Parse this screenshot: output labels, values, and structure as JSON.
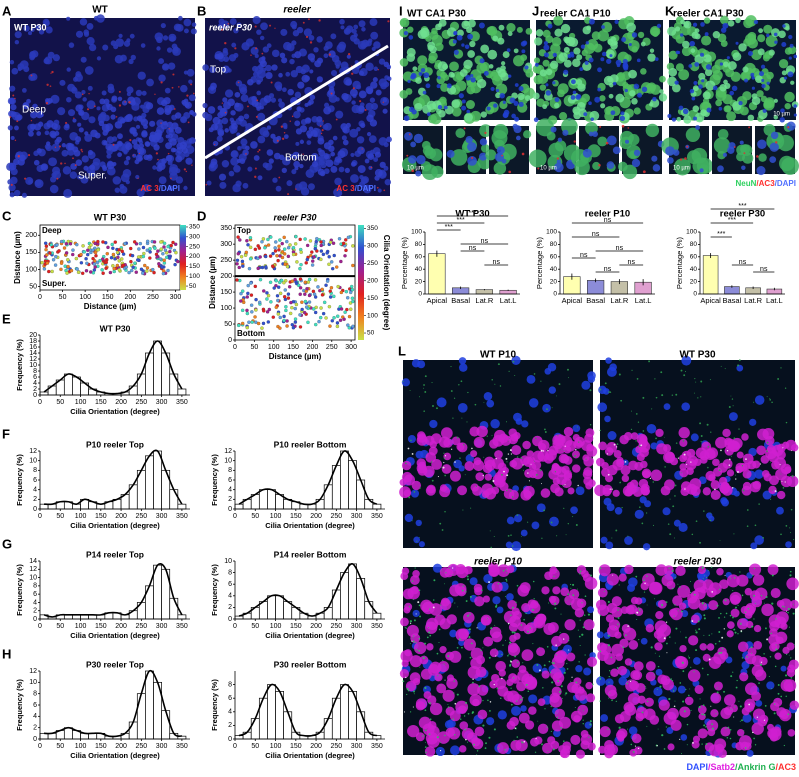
{
  "panels": {
    "A": {
      "label": "A",
      "title": "WT",
      "image_title": "WT P30",
      "deep": "Deep",
      "super": "Super.",
      "stain": [
        "AC 3",
        "/DAPI"
      ]
    },
    "B": {
      "label": "B",
      "title": "reeler",
      "image_title": "reeler P30",
      "top": "Top",
      "bottom": "Bottom",
      "stain": [
        "AC 3",
        "/DAPI"
      ]
    },
    "C": {
      "label": "C",
      "chart": {
        "type": "scatter",
        "title": "WT P30",
        "xlabel": "Distance (µm)",
        "ylabel": "Distance (µm)",
        "xlim": [
          0,
          310
        ],
        "xticks": [
          0,
          50,
          100,
          150,
          200,
          250,
          300
        ],
        "ylim": [
          40,
          230
        ],
        "yticks": [
          50,
          100,
          150,
          200
        ],
        "top_label": "Deep",
        "bottom_label": "Super.",
        "colorbar": {
          "lim": [
            30,
            360
          ],
          "ticks": [
            50,
            100,
            150,
            200,
            250,
            300,
            350
          ]
        }
      }
    },
    "D": {
      "label": "D",
      "chart": {
        "type": "scatter",
        "title": "reeler P30",
        "xlabel": "Distance (µm)",
        "ylabel": "Distance (µm)",
        "xlim": [
          0,
          310
        ],
        "xticks": [
          0,
          50,
          100,
          150,
          200,
          250,
          300
        ],
        "ylim": [
          0,
          360
        ],
        "yticks": [
          0,
          50,
          100,
          150,
          200,
          250,
          300,
          350
        ],
        "divider": 200,
        "top_label": "Top",
        "bottom_label": "Bottom",
        "colorbar": {
          "label": "Cilia Orientation (degree)",
          "lim": [
            30,
            360
          ],
          "ticks": [
            50,
            100,
            150,
            200,
            250,
            300,
            350
          ]
        }
      }
    },
    "E": {
      "label": "E",
      "chart": {
        "type": "histogram",
        "title": "WT P30",
        "xlabel": "Cilia Orientation (degree)",
        "ylabel": "Frequency (%)",
        "bins": [
          0,
          20,
          40,
          60,
          80,
          100,
          120,
          140,
          160,
          180,
          200,
          220,
          240,
          260,
          280,
          300,
          320,
          340,
          360
        ],
        "counts": [
          1,
          3,
          5,
          7,
          6,
          4,
          2,
          1,
          0.5,
          0.5,
          1,
          3,
          7,
          14,
          18,
          14,
          7,
          2
        ],
        "xlim": [
          0,
          370
        ],
        "xticks": [
          0,
          50,
          100,
          150,
          200,
          250,
          300,
          350
        ],
        "ylim": [
          0,
          20
        ],
        "yticks": [
          0,
          2,
          4,
          6,
          8,
          10,
          12,
          14,
          16,
          18,
          20
        ]
      }
    },
    "F": {
      "label": "F",
      "charts": [
        {
          "type": "histogram",
          "title": "P10 reeler Top",
          "xlabel": "Cilia Orientation (degree)",
          "ylabel": "Frequency (%)",
          "bins": [
            0,
            20,
            40,
            60,
            80,
            100,
            120,
            140,
            160,
            180,
            200,
            220,
            240,
            260,
            280,
            300,
            320,
            340,
            360
          ],
          "counts": [
            1,
            1,
            1.5,
            1.5,
            1,
            2,
            1.5,
            1,
            1.5,
            2,
            3,
            5,
            8,
            11,
            12,
            8,
            4,
            1
          ],
          "xlim": [
            0,
            370
          ],
          "xticks": [
            0,
            50,
            100,
            150,
            200,
            250,
            300,
            350
          ],
          "ylim": [
            0,
            12
          ],
          "yticks": [
            0,
            2,
            4,
            6,
            8,
            10,
            12
          ]
        },
        {
          "type": "histogram",
          "title": "P10 reeler Bottom",
          "xlabel": "Cilia Orientation (degree)",
          "ylabel": "Frequency (%)",
          "bins": [
            0,
            20,
            40,
            60,
            80,
            100,
            120,
            140,
            160,
            180,
            200,
            220,
            240,
            260,
            280,
            300,
            320,
            340,
            360
          ],
          "counts": [
            1,
            2,
            3,
            4,
            4,
            3,
            2,
            1.5,
            1,
            1,
            2,
            5,
            9,
            12,
            10,
            6,
            2,
            1
          ],
          "xlim": [
            0,
            370
          ],
          "xticks": [
            0,
            50,
            100,
            150,
            200,
            250,
            300,
            350
          ],
          "ylim": [
            0,
            12
          ],
          "yticks": [
            0,
            2,
            4,
            6,
            8,
            10,
            12
          ]
        }
      ]
    },
    "G": {
      "label": "G",
      "charts": [
        {
          "type": "histogram",
          "title": "P14 reeler Top",
          "xlabel": "Cilia Orientation (degree)",
          "ylabel": "Frequency (%)",
          "bins": [
            0,
            20,
            40,
            60,
            80,
            100,
            120,
            140,
            160,
            180,
            200,
            220,
            240,
            260,
            280,
            300,
            320,
            340,
            360
          ],
          "counts": [
            1,
            0.5,
            1,
            1,
            1,
            1,
            1,
            1,
            1.5,
            1.5,
            1,
            2,
            4,
            8,
            13,
            12,
            5,
            1
          ],
          "xlim": [
            0,
            370
          ],
          "xticks": [
            0,
            50,
            100,
            150,
            200,
            250,
            300,
            350
          ],
          "ylim": [
            0,
            14
          ],
          "yticks": [
            0,
            2,
            4,
            6,
            8,
            10,
            12,
            14
          ]
        },
        {
          "type": "histogram",
          "title": "P14 reeler Bottom",
          "xlabel": "Cilia Orientation (degree)",
          "ylabel": "Frequency (%)",
          "bins": [
            0,
            20,
            40,
            60,
            80,
            100,
            120,
            140,
            160,
            180,
            200,
            220,
            240,
            260,
            280,
            300,
            320,
            340,
            360
          ],
          "counts": [
            0.5,
            1,
            2,
            3,
            4,
            4,
            3,
            2,
            1,
            0.5,
            1,
            2,
            5,
            8,
            9.5,
            7,
            3,
            1
          ],
          "xlim": [
            0,
            370
          ],
          "xticks": [
            0,
            50,
            100,
            150,
            200,
            250,
            300,
            350
          ],
          "ylim": [
            0,
            10
          ],
          "yticks": [
            0,
            2,
            4,
            6,
            8,
            10
          ]
        }
      ]
    },
    "H": {
      "label": "H",
      "charts": [
        {
          "type": "histogram",
          "title": "P30 reeler Top",
          "xlabel": "Cilia Orientation (degree)",
          "ylabel": "Frequency (%)",
          "bins": [
            0,
            20,
            40,
            60,
            80,
            100,
            120,
            140,
            160,
            180,
            200,
            220,
            240,
            260,
            280,
            300,
            320,
            340,
            360
          ],
          "counts": [
            1,
            1,
            1.5,
            2,
            1.5,
            1,
            1,
            1,
            0.5,
            0.5,
            1,
            3,
            8,
            12,
            10,
            5,
            1,
            0.5
          ],
          "xlim": [
            0,
            370
          ],
          "xticks": [
            0,
            50,
            100,
            150,
            200,
            250,
            300,
            350
          ],
          "ylim": [
            0,
            12
          ],
          "yticks": [
            0,
            2,
            4,
            6,
            8,
            10,
            12
          ]
        },
        {
          "type": "histogram",
          "title": "P30 reeler Bottom",
          "xlabel": "Cilia Orientation (degree)",
          "ylabel": "Frequency (%)",
          "bins": [
            0,
            20,
            40,
            60,
            80,
            100,
            120,
            140,
            160,
            180,
            200,
            220,
            240,
            260,
            280,
            300,
            320,
            340,
            360
          ],
          "counts": [
            0.5,
            1,
            3,
            6,
            8,
            7,
            4,
            1,
            0.5,
            0.5,
            1,
            3,
            6,
            8,
            7,
            4,
            1,
            0.5
          ],
          "xlim": [
            0,
            370
          ],
          "xticks": [
            0,
            50,
            100,
            150,
            200,
            250,
            300,
            350
          ],
          "ylim": [
            0,
            10
          ],
          "yticks": [
            0,
            2,
            4,
            6,
            8
          ]
        }
      ]
    },
    "I": {
      "label": "I",
      "title": "WT CA1 P30",
      "scale": "10 µm",
      "chart": {
        "type": "bar",
        "title": "WT P30",
        "ylabel": "Percentage (%)",
        "categories": [
          "Apical",
          "Basal",
          "Lat.R",
          "Lat.L"
        ],
        "values": [
          65,
          10,
          7,
          6
        ],
        "errors": [
          5,
          2,
          1,
          1
        ],
        "colors": [
          "#ffffb0",
          "#8c8cd8",
          "#c4c0a8",
          "#e0a0d0"
        ],
        "ylim": [
          0,
          100
        ],
        "yticks": [
          0,
          20,
          40,
          60,
          80,
          100
        ],
        "annotations": [
          "***",
          "***",
          "***",
          "ns",
          "ns",
          "ns"
        ]
      }
    },
    "J": {
      "label": "J",
      "title": "reeler CA1 P10",
      "scale": "10 µm",
      "chart": {
        "type": "bar",
        "title": "reeler P10",
        "ylabel": "Percentage (%)",
        "categories": [
          "Apical",
          "Basal",
          "Lat.R",
          "Lat.L"
        ],
        "values": [
          28,
          22,
          20,
          19
        ],
        "errors": [
          5,
          3,
          4,
          5
        ],
        "colors": [
          "#ffffb0",
          "#8c8cd8",
          "#c4c0a8",
          "#e0a0d0"
        ],
        "ylim": [
          0,
          100
        ],
        "yticks": [
          0,
          20,
          40,
          60,
          80,
          100
        ],
        "annotations": [
          "ns",
          "ns",
          "ns",
          "ns",
          "ns",
          "ns"
        ]
      }
    },
    "K": {
      "label": "K",
      "title": "reeler CA1 P30",
      "scale": "10 µm",
      "stain": [
        "NeuN",
        "/AC3",
        "/DAPI"
      ],
      "chart": {
        "type": "bar",
        "title": "reeler P30",
        "ylabel": "Percentage (%)",
        "categories": [
          "Apical",
          "Basal",
          "Lat.R",
          "Lat.L"
        ],
        "values": [
          62,
          12,
          10,
          8
        ],
        "errors": [
          4,
          2,
          2,
          2
        ],
        "colors": [
          "#ffffb0",
          "#8c8cd8",
          "#c4c0a8",
          "#e0a0d0"
        ],
        "ylim": [
          0,
          100
        ],
        "yticks": [
          0,
          20,
          40,
          60,
          80,
          100
        ],
        "annotations": [
          "***",
          "***",
          "***",
          "ns",
          "ns"
        ]
      }
    },
    "L": {
      "label": "L",
      "images": [
        "WT P10",
        "WT P30",
        "reeler P10",
        "reeler P30"
      ],
      "stain": [
        "DAPI",
        "/Satb2",
        "/Ankrin G",
        "/AC3"
      ]
    }
  }
}
